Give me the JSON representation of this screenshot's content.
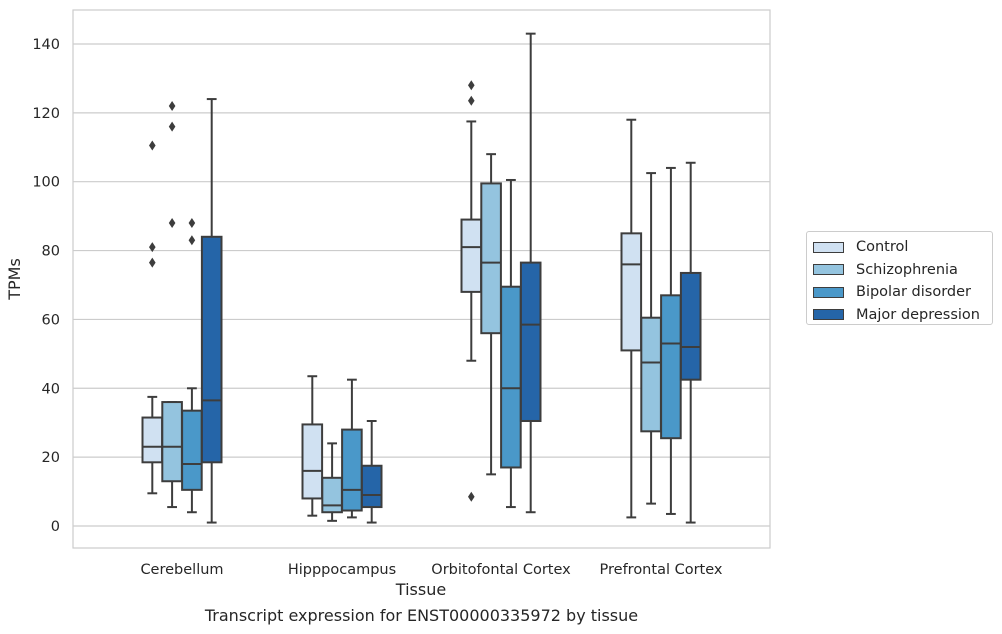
{
  "caption": "Transcript expression for ENST00000335972 by tissue",
  "chart_data": {
    "type": "box",
    "xlabel": "Tissue",
    "ylabel": "TPMs",
    "ylim": [
      -6,
      150
    ],
    "yticks": [
      0,
      20,
      40,
      60,
      80,
      100,
      120,
      140
    ],
    "grid": "horizontal",
    "legend_position": "right",
    "categories": [
      "Cerebellum",
      "Hipppocampus",
      "Orbitofontal Cortex",
      "Prefrontal Cortex"
    ],
    "series": [
      {
        "name": "Control",
        "color": "#d0e1f2",
        "boxes": [
          {
            "whisker_low": 9.5,
            "q1": 18.5,
            "median": 23,
            "q3": 31.5,
            "whisker_high": 37.5,
            "outliers": [
              76.5,
              81,
              110.5
            ]
          },
          {
            "whisker_low": 3,
            "q1": 8,
            "median": 16,
            "q3": 29.5,
            "whisker_high": 43.5,
            "outliers": []
          },
          {
            "whisker_low": 48,
            "q1": 68,
            "median": 81,
            "q3": 89,
            "whisker_high": 117.5,
            "outliers": [
              8.5,
              123.5,
              128
            ]
          },
          {
            "whisker_low": 2.5,
            "q1": 51,
            "median": 76,
            "q3": 85,
            "whisker_high": 118,
            "outliers": []
          }
        ]
      },
      {
        "name": "Schizophrenia",
        "color": "#94c4df",
        "boxes": [
          {
            "whisker_low": 5.5,
            "q1": 13,
            "median": 23,
            "q3": 36,
            "whisker_high": 36,
            "outliers": [
              88,
              116,
              122
            ]
          },
          {
            "whisker_low": 1.5,
            "q1": 4,
            "median": 6,
            "q3": 14,
            "whisker_high": 24,
            "outliers": []
          },
          {
            "whisker_low": 15,
            "q1": 56,
            "median": 76.5,
            "q3": 99.5,
            "whisker_high": 108,
            "outliers": []
          },
          {
            "whisker_low": 6.5,
            "q1": 27.5,
            "median": 47.5,
            "q3": 60.5,
            "whisker_high": 102.5,
            "outliers": []
          }
        ]
      },
      {
        "name": "Bipolar disorder",
        "color": "#4a98c9",
        "boxes": [
          {
            "whisker_low": 4,
            "q1": 10.5,
            "median": 18,
            "q3": 33.5,
            "whisker_high": 40,
            "outliers": [
              83,
              88
            ]
          },
          {
            "whisker_low": 2.5,
            "q1": 4.5,
            "median": 10.5,
            "q3": 28,
            "whisker_high": 42.5,
            "outliers": []
          },
          {
            "whisker_low": 5.5,
            "q1": 17,
            "median": 40,
            "q3": 69.5,
            "whisker_high": 100.5,
            "outliers": []
          },
          {
            "whisker_low": 3.5,
            "q1": 25.5,
            "median": 53,
            "q3": 67,
            "whisker_high": 104,
            "outliers": []
          }
        ]
      },
      {
        "name": "Major depression",
        "color": "#2565a8",
        "boxes": [
          {
            "whisker_low": 1,
            "q1": 18.5,
            "median": 36.5,
            "q3": 84,
            "whisker_high": 124,
            "outliers": []
          },
          {
            "whisker_low": 1,
            "q1": 5.5,
            "median": 9,
            "q3": 17.5,
            "whisker_high": 30.5,
            "outliers": []
          },
          {
            "whisker_low": 4,
            "q1": 30.5,
            "median": 58.5,
            "q3": 76.5,
            "whisker_high": 143,
            "outliers": []
          },
          {
            "whisker_low": 1,
            "q1": 42.5,
            "median": 52,
            "q3": 73.5,
            "whisker_high": 105.5,
            "outliers": []
          }
        ]
      }
    ]
  }
}
